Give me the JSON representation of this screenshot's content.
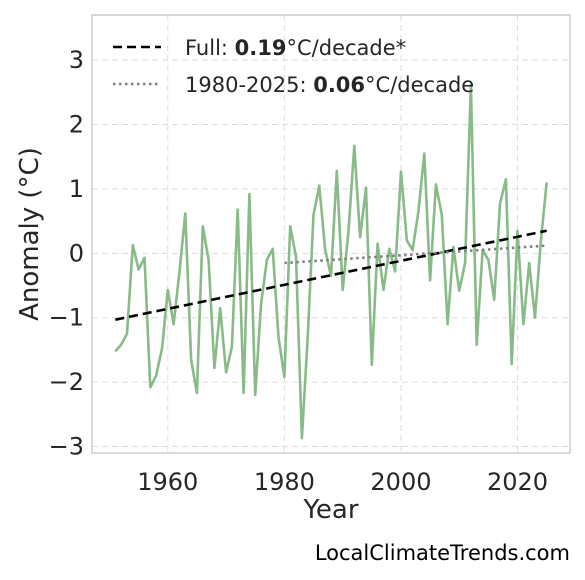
{
  "chart_data": {
    "type": "line",
    "xlabel": "Year",
    "ylabel": "Anomaly (°C)",
    "xlim": [
      1947,
      2029
    ],
    "ylim": [
      -3.1,
      3.7
    ],
    "xticks": [
      1960,
      1980,
      2000,
      2020
    ],
    "yticks": [
      -3,
      -2,
      -1,
      0,
      1,
      2,
      3
    ],
    "ytick_labels": [
      "−3",
      "−2",
      "−1",
      "0",
      "1",
      "2",
      "3"
    ],
    "grid": true,
    "legend_position": "top-left",
    "colors": {
      "series": "#88bb88",
      "full_trend": "#000000",
      "recent_trend": "#808080",
      "grid": "#dddddd",
      "frame": "#cccccc"
    },
    "series": [
      {
        "x": [
          1951,
          1952,
          1953,
          1954,
          1955,
          1956,
          1957,
          1958,
          1959,
          1960,
          1961,
          1962,
          1963,
          1964,
          1965,
          1966,
          1967,
          1968,
          1969,
          1970,
          1971,
          1972,
          1973,
          1974,
          1975,
          1976,
          1977,
          1978,
          1979,
          1980,
          1981,
          1982,
          1983,
          1984,
          1985,
          1986,
          1987,
          1988,
          1989,
          1990,
          1991,
          1992,
          1993,
          1994,
          1995,
          1996,
          1997,
          1998,
          1999,
          2000,
          2001,
          2002,
          2003,
          2004,
          2005,
          2006,
          2007,
          2008,
          2009,
          2010,
          2011,
          2012,
          2013,
          2014,
          2015,
          2016,
          2017,
          2018,
          2019,
          2020,
          2021,
          2022,
          2023,
          2024,
          2025
        ],
        "values": [
          -1.52,
          -1.42,
          -1.25,
          0.13,
          -0.25,
          -0.07,
          -2.08,
          -1.9,
          -1.48,
          -0.57,
          -1.1,
          -0.3,
          0.62,
          -1.65,
          -2.17,
          0.42,
          -0.1,
          -1.78,
          -0.85,
          -1.85,
          -1.45,
          0.68,
          -2.17,
          0.92,
          -2.2,
          -0.8,
          -0.1,
          0.07,
          -1.3,
          -1.92,
          0.42,
          -0.05,
          -2.87,
          -1.3,
          0.6,
          1.05,
          0.05,
          -0.35,
          1.28,
          -0.57,
          0.35,
          1.67,
          0.25,
          1.02,
          -1.73,
          0.15,
          -0.57,
          0.07,
          -0.28,
          1.27,
          0.2,
          0.05,
          0.65,
          1.55,
          -0.42,
          1.07,
          0.6,
          -1.1,
          0.1,
          -0.58,
          -0.15,
          2.62,
          -1.42,
          0.05,
          -0.1,
          -0.72,
          0.77,
          1.15,
          -1.72,
          0.35,
          -1.1,
          -0.15,
          -1.0,
          0.2,
          1.1
        ]
      }
    ],
    "trends": [
      {
        "style": "dashed",
        "x": [
          1951,
          2025
        ],
        "y": [
          -1.03,
          0.35
        ]
      },
      {
        "style": "dotted",
        "x": [
          1980,
          2025
        ],
        "y": [
          -0.15,
          0.12
        ]
      }
    ],
    "legend": [
      {
        "prefix": "Full: ",
        "bold": "0.19",
        "suffix": "°C/decade*"
      },
      {
        "prefix": "1980-2025: ",
        "bold": "0.06",
        "suffix": "°C/decade"
      }
    ]
  },
  "source_text": "LocalClimateTrends.com"
}
